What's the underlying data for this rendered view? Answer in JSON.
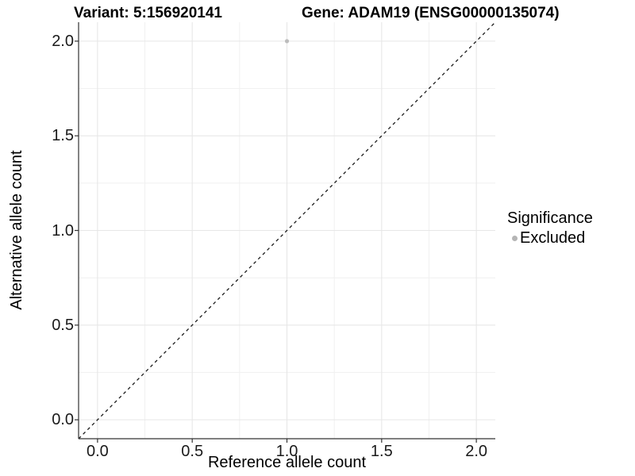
{
  "header": {
    "title_left": "Variant: 5:156920141",
    "title_right": "Gene: ADAM19 (ENSG00000135074)"
  },
  "chart_data": {
    "type": "scatter",
    "title_left": "Variant: 5:156920141",
    "title_right": "Gene: ADAM19 (ENSG00000135074)",
    "xlabel": "Reference allele count",
    "ylabel": "Alternative allele count",
    "xlim": [
      -0.1,
      2.1
    ],
    "ylim": [
      -0.1,
      2.1
    ],
    "x_ticks": [
      0.0,
      0.5,
      1.0,
      1.5,
      2.0
    ],
    "y_ticks": [
      0.0,
      0.5,
      1.0,
      1.5,
      2.0
    ],
    "tick_decimals": 1,
    "minor_step": 0.25,
    "grid": true,
    "points": [
      {
        "x": 1.0,
        "y": 2.0,
        "series": "Excluded"
      }
    ],
    "reference_line": {
      "kind": "identity",
      "from": -0.1,
      "to": 2.1,
      "style": "dashed"
    },
    "legend": {
      "title": "Significance",
      "position": "right",
      "entries": [
        {
          "label": "Excluded",
          "color": "#b5b5b5"
        }
      ]
    },
    "colors": {
      "point": "#bdbdbd",
      "grid_major": "#e7e7e7",
      "grid_minor": "#f1f1f1",
      "axis_line": "#333333",
      "tick_mark": "#333333",
      "dashed_line": "#1a1a1a",
      "background": "#ffffff"
    }
  }
}
